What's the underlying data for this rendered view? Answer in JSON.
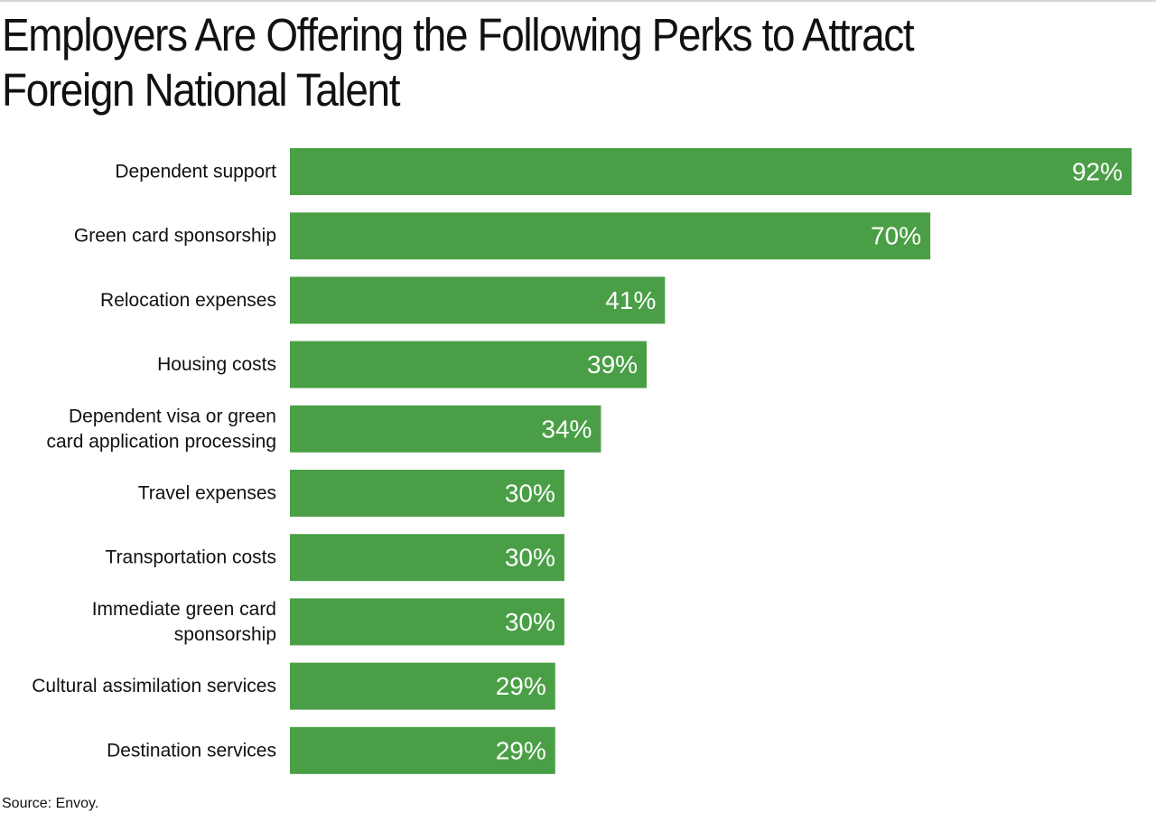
{
  "chart_data": {
    "type": "bar",
    "orientation": "horizontal",
    "title": "Employers Are Offering the Following Perks to Attract Foreign National Talent",
    "categories": [
      "Dependent support",
      "Green card sponsorship",
      "Relocation expenses",
      "Housing costs",
      "Dependent visa or green card application processing",
      "Travel expenses",
      "Transportation costs",
      "Immediate green card sponsorship",
      "Cultural assimilation services",
      "Destination services"
    ],
    "category_label_lines": [
      [
        "Dependent support"
      ],
      [
        "Green card sponsorship"
      ],
      [
        "Relocation expenses"
      ],
      [
        "Housing costs"
      ],
      [
        "Dependent visa or green",
        "card application processing"
      ],
      [
        "Travel expenses"
      ],
      [
        "Transportation costs"
      ],
      [
        "Immediate green card",
        "sponsorship"
      ],
      [
        "Cultural assimilation services"
      ],
      [
        "Destination services"
      ]
    ],
    "values": [
      92,
      70,
      41,
      39,
      34,
      30,
      30,
      30,
      29,
      29
    ],
    "value_labels": [
      "92%",
      "70%",
      "41%",
      "39%",
      "34%",
      "30%",
      "30%",
      "30%",
      "29%",
      "29%"
    ],
    "unit": "%",
    "xlim": [
      0,
      92
    ],
    "xlabel": "",
    "ylabel": "",
    "grid": false,
    "legend": "none",
    "bar_color": "#4a9f46",
    "value_label_color": "#ffffff",
    "source": "Source: Envoy."
  }
}
